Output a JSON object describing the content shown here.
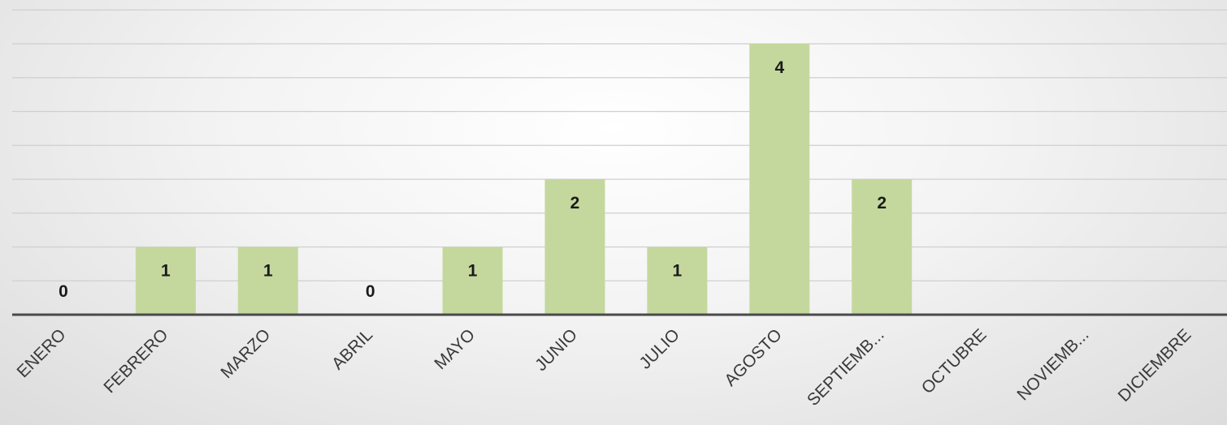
{
  "chart_data": {
    "type": "bar",
    "categories": [
      "ENERO",
      "FEBRERO",
      "MARZO",
      "ABRIL",
      "MAYO",
      "JUNIO",
      "JULIO",
      "AGOSTO",
      "SEPTIEMB...",
      "OCTUBRE",
      "NOVIEMB...",
      "DICIEMBRE"
    ],
    "values": [
      0,
      1,
      1,
      0,
      1,
      2,
      1,
      4,
      2,
      null,
      null,
      null
    ],
    "data_labels": [
      "0",
      "1",
      "1",
      "0",
      "1",
      "2",
      "1",
      "4",
      "2",
      "",
      "",
      ""
    ],
    "title": "",
    "xlabel": "",
    "ylabel": "",
    "ylim": [
      0,
      4.5
    ],
    "grid": true,
    "legend": "none",
    "colors": {
      "bar": "#c4d89d",
      "axis": "#4a4a4a",
      "grid": "#cfcfcf"
    }
  }
}
